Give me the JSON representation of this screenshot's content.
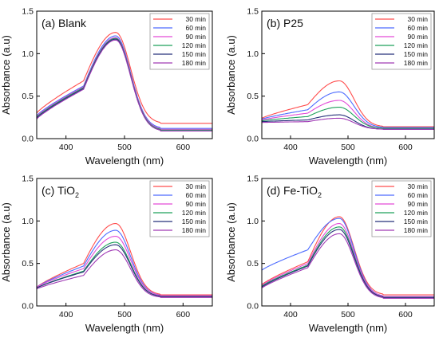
{
  "chart_data": [
    {
      "type": "line",
      "panel_label": "(a) Blank",
      "xlabel": "Wavelength (nm)",
      "ylabel": "Absorbance (a.u)",
      "xlim": [
        350,
        650
      ],
      "ylim": [
        0,
        1.5
      ],
      "xticks": [
        400,
        500,
        600
      ],
      "yticks": [
        0.0,
        0.5,
        1.0,
        1.5
      ],
      "legend": "top-right",
      "grid": false,
      "peak_nm": 485,
      "series": [
        {
          "name": "30 min",
          "color": "#ff4d4d",
          "start": 0.3,
          "shoulder": 0.68,
          "peak": 1.25,
          "baseline": 0.18
        },
        {
          "name": "60 min",
          "color": "#4d6bff",
          "start": 0.27,
          "shoulder": 0.62,
          "peak": 1.21,
          "baseline": 0.12
        },
        {
          "name": "90 min",
          "color": "#e34bd8",
          "start": 0.26,
          "shoulder": 0.61,
          "peak": 1.19,
          "baseline": 0.11
        },
        {
          "name": "120 min",
          "color": "#1ea05a",
          "start": 0.25,
          "shoulder": 0.6,
          "peak": 1.18,
          "baseline": 0.1
        },
        {
          "name": "150 min",
          "color": "#26307a",
          "start": 0.24,
          "shoulder": 0.59,
          "peak": 1.17,
          "baseline": 0.09
        },
        {
          "name": "180 min",
          "color": "#a03ab5",
          "start": 0.23,
          "shoulder": 0.58,
          "peak": 1.16,
          "baseline": 0.09
        }
      ]
    },
    {
      "type": "line",
      "panel_label": "(b) P25",
      "xlabel": "Wavelength (nm)",
      "ylabel": "Absorbance (a.u)",
      "xlim": [
        350,
        650
      ],
      "ylim": [
        0,
        1.5
      ],
      "xticks": [
        400,
        500,
        600
      ],
      "yticks": [
        0.0,
        0.5,
        1.0,
        1.5
      ],
      "legend": "top-right",
      "grid": false,
      "peak_nm": 485,
      "series": [
        {
          "name": "30 min",
          "color": "#ff4d4d",
          "start": 0.24,
          "shoulder": 0.4,
          "peak": 0.68,
          "baseline": 0.14
        },
        {
          "name": "60 min",
          "color": "#4d6bff",
          "start": 0.23,
          "shoulder": 0.34,
          "peak": 0.55,
          "baseline": 0.13
        },
        {
          "name": "90 min",
          "color": "#e34bd8",
          "start": 0.22,
          "shoulder": 0.3,
          "peak": 0.45,
          "baseline": 0.12
        },
        {
          "name": "120 min",
          "color": "#1ea05a",
          "start": 0.21,
          "shoulder": 0.26,
          "peak": 0.37,
          "baseline": 0.12
        },
        {
          "name": "150 min",
          "color": "#26307a",
          "start": 0.2,
          "shoulder": 0.22,
          "peak": 0.28,
          "baseline": 0.11
        },
        {
          "name": "180 min",
          "color": "#a03ab5",
          "start": 0.19,
          "shoulder": 0.2,
          "peak": 0.24,
          "baseline": 0.11
        }
      ]
    },
    {
      "type": "line",
      "panel_label": "(c) TiO",
      "panel_label_sub": "2",
      "xlabel": "Wavelength (nm)",
      "ylabel": "Absorbance (a.u)",
      "xlim": [
        350,
        650
      ],
      "ylim": [
        0,
        1.5
      ],
      "xticks": [
        400,
        500,
        600
      ],
      "yticks": [
        0.0,
        0.5,
        1.0,
        1.5
      ],
      "legend": "top-right",
      "grid": false,
      "peak_nm": 485,
      "series": [
        {
          "name": "30 min",
          "color": "#ff4d4d",
          "start": 0.22,
          "shoulder": 0.5,
          "peak": 0.97,
          "baseline": 0.13
        },
        {
          "name": "60 min",
          "color": "#4d6bff",
          "start": 0.22,
          "shoulder": 0.47,
          "peak": 0.89,
          "baseline": 0.12
        },
        {
          "name": "90 min",
          "color": "#e34bd8",
          "start": 0.22,
          "shoulder": 0.44,
          "peak": 0.82,
          "baseline": 0.12
        },
        {
          "name": "120 min",
          "color": "#1ea05a",
          "start": 0.21,
          "shoulder": 0.41,
          "peak": 0.75,
          "baseline": 0.11
        },
        {
          "name": "150 min",
          "color": "#26307a",
          "start": 0.21,
          "shoulder": 0.4,
          "peak": 0.72,
          "baseline": 0.11
        },
        {
          "name": "180 min",
          "color": "#a03ab5",
          "start": 0.2,
          "shoulder": 0.36,
          "peak": 0.66,
          "baseline": 0.1
        }
      ]
    },
    {
      "type": "line",
      "panel_label": "(d) Fe-TiO",
      "panel_label_sub": "2",
      "xlabel": "Wavelength (nm)",
      "ylabel": "Absorbance (a.u)",
      "xlim": [
        350,
        650
      ],
      "ylim": [
        0,
        1.5
      ],
      "xticks": [
        400,
        500,
        600
      ],
      "yticks": [
        0.0,
        0.5,
        1.0,
        1.5
      ],
      "legend": "top-right",
      "grid": false,
      "peak_nm": 485,
      "series": [
        {
          "name": "30 min",
          "color": "#ff4d4d",
          "start": 0.25,
          "shoulder": 0.52,
          "peak": 1.05,
          "baseline": 0.13
        },
        {
          "name": "60 min",
          "color": "#4d6bff",
          "start": 0.42,
          "shoulder": 0.66,
          "peak": 1.03,
          "baseline": 0.11
        },
        {
          "name": "90 min",
          "color": "#e34bd8",
          "start": 0.24,
          "shoulder": 0.5,
          "peak": 0.97,
          "baseline": 0.11
        },
        {
          "name": "120 min",
          "color": "#1ea05a",
          "start": 0.23,
          "shoulder": 0.48,
          "peak": 0.93,
          "baseline": 0.1
        },
        {
          "name": "150 min",
          "color": "#26307a",
          "start": 0.22,
          "shoulder": 0.47,
          "peak": 0.9,
          "baseline": 0.1
        },
        {
          "name": "180 min",
          "color": "#a03ab5",
          "start": 0.21,
          "shoulder": 0.45,
          "peak": 0.85,
          "baseline": 0.09
        }
      ]
    }
  ]
}
